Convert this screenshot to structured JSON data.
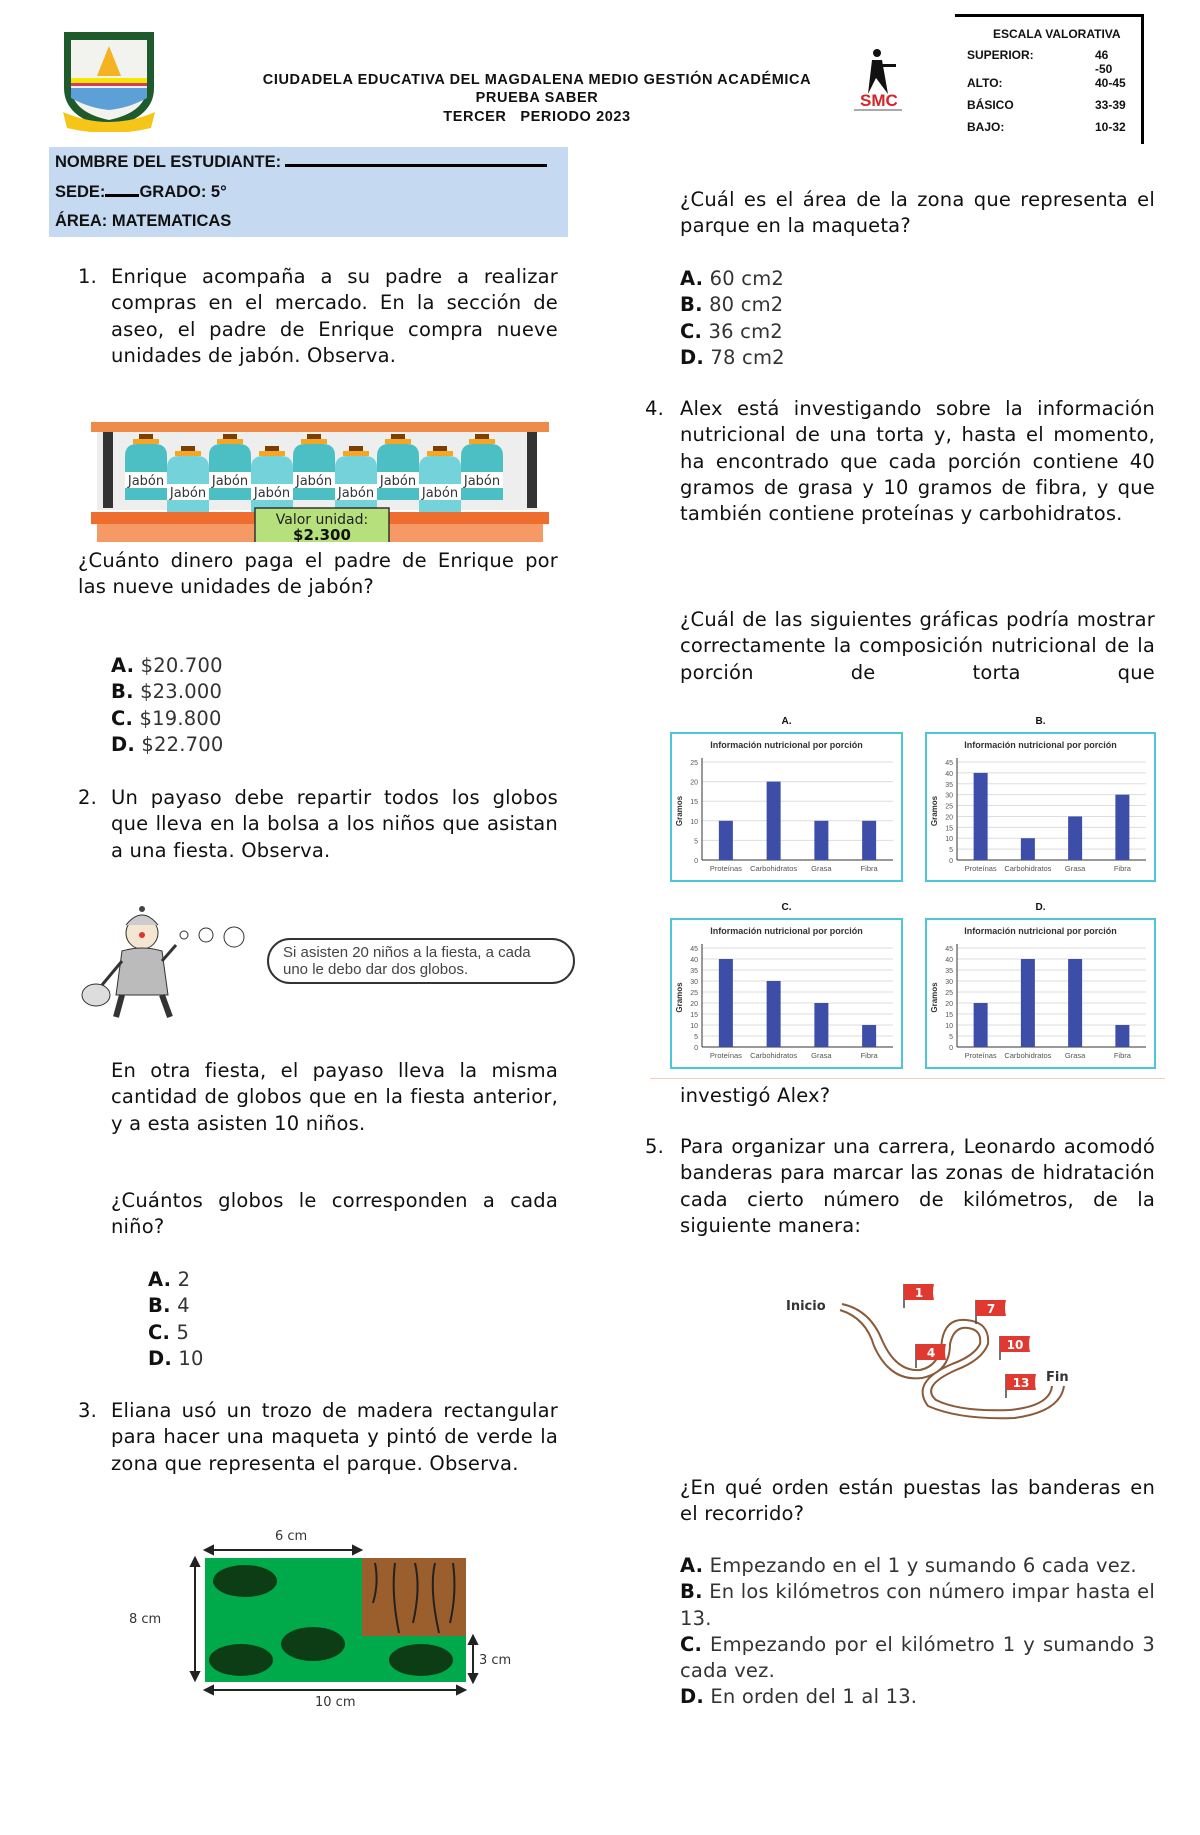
{
  "header": {
    "institution": "CIUDADELA EDUCATIVA DEL MAGDALENA MEDIO GESTIÓN ACADÉMICA",
    "test": "PRUEBA SABER",
    "period": "TERCER   PERIODO 2023",
    "logo_text": "SMC",
    "escala": {
      "title": "ESCALA VALORATIVA",
      "rows": [
        {
          "label": "SUPERIOR:",
          "range": "46 -50"
        },
        {
          "label": "ALTO:",
          "range": "40-45"
        },
        {
          "label": "BÁSICO",
          "range": "33-39"
        },
        {
          "label": "BAJO:",
          "range": "10-32"
        }
      ]
    }
  },
  "student": {
    "name_label": "NOMBRE DEL ESTUDIANTE:",
    "sede_label": "SEDE:",
    "grado_label": "GRADO: 5°",
    "area_label": "ÁREA: MATEMATICAS"
  },
  "q1": {
    "number": "1.",
    "text": "Enrique acompaña a su padre a realizar compras en el mercado. En la sección de aseo, el padre de Enrique compra nueve unidades de jabón. Observa.",
    "product_label": "Jabón",
    "price_label": "Valor unidad:",
    "price": "$2.300",
    "question": "¿Cuánto dinero paga el padre de Enrique por las nueve unidades de jabón?",
    "options": [
      {
        "letter": "A.",
        "text": "$20.700"
      },
      {
        "letter": "B.",
        "text": "$23.000"
      },
      {
        "letter": "C.",
        "text": "$19.800"
      },
      {
        "letter": "D.",
        "text": "$22.700"
      }
    ]
  },
  "q2": {
    "number": "2.",
    "text": "Un payaso debe repartir todos los globos que lleva en la bolsa a los niños que asistan a una fiesta. Observa.",
    "bubble": "Si asisten 20 niños a la fiesta, a cada uno le debo dar dos globos.",
    "text2": "En otra fiesta, el payaso lleva la misma cantidad de globos que en la fiesta anterior, y a esta asisten 10 niños.",
    "question": "¿Cuántos globos le corresponden a cada niño?",
    "options": [
      {
        "letter": "A.",
        "text": "2"
      },
      {
        "letter": "B.",
        "text": "4"
      },
      {
        "letter": "C.",
        "text": "5"
      },
      {
        "letter": "D.",
        "text": "10"
      }
    ]
  },
  "q3": {
    "number": "3.",
    "text": "Eliana usó un trozo de madera rectangular para hacer una maqueta y pintó de verde la zona que representa el parque. Observa.",
    "dims": {
      "top": "6 cm",
      "left": "8 cm",
      "bottom": "10 cm",
      "right": "3 cm"
    },
    "question": "¿Cuál es el área de la zona que representa el parque en la maqueta?",
    "options": [
      {
        "letter": "A.",
        "text": "60 cm2"
      },
      {
        "letter": "B.",
        "text": "80 cm2"
      },
      {
        "letter": "C.",
        "text": "36 cm2"
      },
      {
        "letter": "D.",
        "text": "78 cm2"
      }
    ]
  },
  "q4": {
    "number": "4.",
    "text": "Alex está investigando sobre la información nutricional de una torta y, hasta el momento, ha encontrado que cada porción contiene 40 gramos de grasa y 10 gramos de fibra, y que también contiene proteínas y carbohidratos.",
    "question": "¿Cuál de las siguientes gráficas podría mostrar correctamente la composición nutricional de la porción de torta que",
    "question_end": "investigó Alex?"
  },
  "chart_data": [
    {
      "option": "A.",
      "type": "bar",
      "title": "Información nutricional por porción",
      "ylabel": "Gramos",
      "categories": [
        "Proteínas",
        "Carbohidratos",
        "Grasa",
        "Fibra"
      ],
      "values": [
        10,
        20,
        10,
        10
      ],
      "ylim": [
        0,
        25
      ],
      "ticks": [
        0,
        5,
        10,
        15,
        20,
        25
      ],
      "grid": true,
      "color": "#3c4ea8"
    },
    {
      "option": "B.",
      "type": "bar",
      "title": "Información nutricional por porción",
      "ylabel": "Gramos",
      "categories": [
        "Proteínas",
        "Carbohidratos",
        "Grasa",
        "Fibra"
      ],
      "values": [
        40,
        10,
        20,
        30
      ],
      "ylim": [
        0,
        45
      ],
      "ticks": [
        0,
        5,
        10,
        15,
        20,
        25,
        30,
        35,
        40,
        45
      ],
      "grid": true,
      "color": "#3c4ea8"
    },
    {
      "option": "C.",
      "type": "bar",
      "title": "Información nutricional por porción",
      "ylabel": "Gramos",
      "categories": [
        "Proteínas",
        "Carbohidratos",
        "Grasa",
        "Fibra"
      ],
      "values": [
        40,
        30,
        20,
        10
      ],
      "ylim": [
        0,
        45
      ],
      "ticks": [
        0,
        5,
        10,
        15,
        20,
        25,
        30,
        35,
        40,
        45
      ],
      "grid": true,
      "color": "#3c4ea8"
    },
    {
      "option": "D.",
      "type": "bar",
      "title": "Información nutricional por porción",
      "ylabel": "Gramos",
      "categories": [
        "Proteínas",
        "Carbohidratos",
        "Grasa",
        "Fibra"
      ],
      "values": [
        20,
        40,
        40,
        10
      ],
      "ylim": [
        0,
        45
      ],
      "ticks": [
        0,
        5,
        10,
        15,
        20,
        25,
        30,
        35,
        40,
        45
      ],
      "grid": true,
      "color": "#3c4ea8"
    }
  ],
  "q5": {
    "number": "5.",
    "text": "Para organizar una carrera, Leonardo acomodó banderas para marcar las zonas de hidratación cada cierto número de kilómetros, de la siguiente manera:",
    "start": "Inicio",
    "end": "Fin",
    "flags": [
      "1",
      "4",
      "7",
      "10",
      "13"
    ],
    "question": "¿En qué orden están puestas las banderas en el recorrido?",
    "options": [
      {
        "letter": "A.",
        "text": "Empezando en el 1 y sumando 6 cada vez."
      },
      {
        "letter": "B.",
        "text": "En los kilómetros con número impar hasta el 13."
      },
      {
        "letter": "C.",
        "text": "Empezando por el kilómetro 1 y sumando 3 cada vez."
      },
      {
        "letter": "D.",
        "text": "En orden del 1 al 13."
      }
    ]
  }
}
